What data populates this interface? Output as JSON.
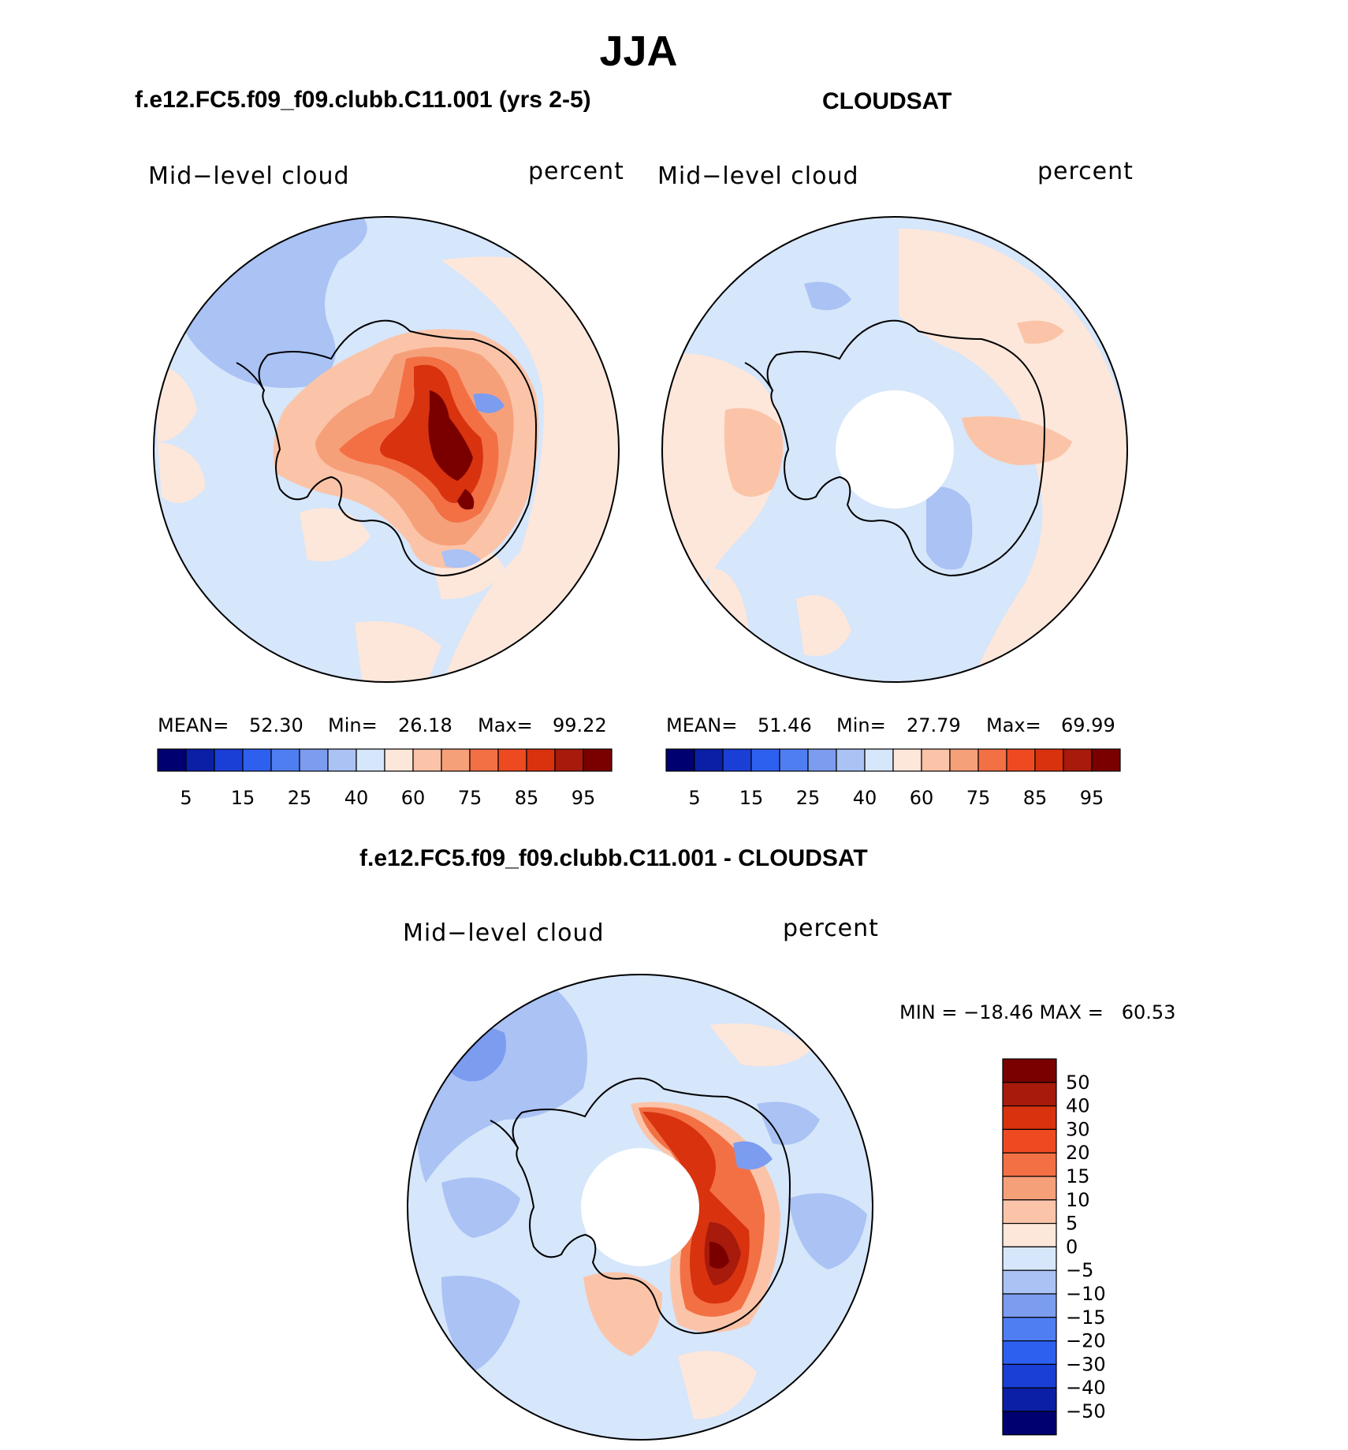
{
  "figure": {
    "title": "JJA",
    "colors": {
      "seq": [
        "#000070",
        "#0b1fa6",
        "#1a3fd6",
        "#2e60f0",
        "#4f7ef2",
        "#7c9cf0",
        "#aac2f4",
        "#d6e6fb",
        "#fde7da",
        "#fbc4a8",
        "#f6a07a",
        "#f37045",
        "#ee4a22",
        "#d8320f",
        "#a71a0c",
        "#7a0000"
      ],
      "diff": [
        "#000070",
        "#0b1fa6",
        "#1a3fd6",
        "#2e60f0",
        "#4f7ef2",
        "#7c9cf0",
        "#aac2f4",
        "#d6e6fb",
        "#fde7da",
        "#fbc4a8",
        "#f6a07a",
        "#f37045",
        "#ee4a22",
        "#d8320f",
        "#a71a0c",
        "#7a0000"
      ]
    }
  },
  "panels": [
    {
      "title": "f.e12.FC5.f09_f09.clubb.C11.001 (yrs 2-5)",
      "variable": "Mid−level cloud",
      "units": "percent",
      "stats": {
        "mean_label": "MEAN=",
        "mean": "52.30",
        "min_label": "Min=",
        "min": "26.18",
        "max_label": "Max=",
        "max": "99.22"
      },
      "colorbar_ticks": [
        "5",
        "15",
        "25",
        "40",
        "60",
        "75",
        "85",
        "95"
      ]
    },
    {
      "title": "CLOUDSAT",
      "variable": "Mid−level cloud",
      "units": "percent",
      "stats": {
        "mean_label": "MEAN=",
        "mean": "51.46",
        "min_label": "Min=",
        "min": "27.79",
        "max_label": "Max=",
        "max": "69.99"
      },
      "colorbar_ticks": [
        "5",
        "15",
        "25",
        "40",
        "60",
        "75",
        "85",
        "95"
      ]
    }
  ],
  "difference": {
    "title": "f.e12.FC5.f09_f09.clubb.C11.001 - CLOUDSAT",
    "variable": "Mid−level cloud",
    "units": "percent",
    "minmax_text": "MIN = −18.46 MAX =   60.53",
    "colorbar_labels": [
      "50",
      "40",
      "30",
      "20",
      "15",
      "10",
      "5",
      "0",
      "−5",
      "−10",
      "−15",
      "−20",
      "−30",
      "−40",
      "−50"
    ]
  }
}
